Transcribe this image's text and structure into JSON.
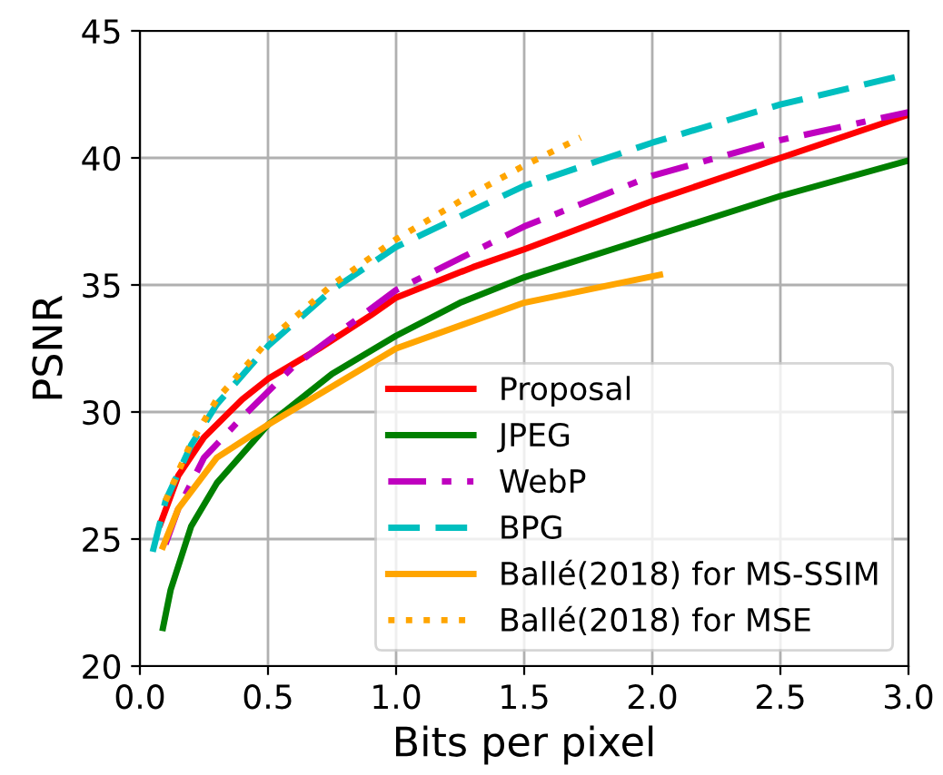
{
  "chart_data": {
    "type": "line",
    "xlabel": "Bits per pixel",
    "ylabel": "PSNR",
    "xlim": [
      0,
      3
    ],
    "ylim": [
      20,
      45
    ],
    "xticks": [
      {
        "value": 0,
        "label": "0.0"
      },
      0.5,
      {
        "value": 1,
        "label": "1.0"
      },
      1.5,
      {
        "value": 2,
        "label": "2.0"
      },
      2.5,
      {
        "value": 3,
        "label": "3.0"
      }
    ],
    "yticks": [
      20,
      25,
      30,
      35,
      40,
      45
    ],
    "grid": true,
    "legend": "bottom right",
    "series": [
      {
        "name": "Proposal",
        "color": "#ff0000",
        "line_style": "solid",
        "x": [
          0.08,
          0.15,
          0.25,
          0.4,
          0.5,
          0.7,
          0.9,
          1.0,
          1.3,
          1.5,
          2.0,
          2.5,
          3.0
        ],
        "values": [
          25.6,
          27.5,
          29,
          30.5,
          31.3,
          32.5,
          33.8,
          34.5,
          35.7,
          36.4,
          38.3,
          40.0,
          41.7
        ]
      },
      {
        "name": "JPEG",
        "color": "#008000",
        "line_style": "solid",
        "x": [
          0.09,
          0.12,
          0.2,
          0.3,
          0.5,
          0.75,
          1.0,
          1.25,
          1.5,
          2.0,
          2.5,
          3.0
        ],
        "values": [
          21.5,
          23,
          25.5,
          27.2,
          29.5,
          31.5,
          33,
          34.3,
          35.3,
          36.9,
          38.5,
          39.9
        ]
      },
      {
        "name": "WebP",
        "color": "#bf00bf",
        "line_style": "dashdot",
        "x": [
          0.1,
          0.15,
          0.25,
          0.4,
          0.6,
          0.8,
          1.0,
          1.5,
          2.0,
          2.5,
          3.0
        ],
        "values": [
          24.8,
          26.2,
          28.2,
          29.8,
          31.8,
          33.3,
          34.8,
          37.3,
          39.3,
          40.7,
          41.8
        ]
      },
      {
        "name": "BPG",
        "color": "#00bfbf",
        "line_style": "dashed",
        "x": [
          0.05,
          0.1,
          0.2,
          0.3,
          0.5,
          0.75,
          1.0,
          1.5,
          2.0,
          2.5,
          3.0
        ],
        "values": [
          24.5,
          26.5,
          28.7,
          30.3,
          32.6,
          34.8,
          36.5,
          38.9,
          40.6,
          42.1,
          43.3
        ]
      },
      {
        "name": "Ballé(2018) for MS-SSIM",
        "color": "#ffa500",
        "line_style": "solid",
        "x": [
          0.09,
          0.15,
          0.3,
          0.5,
          0.75,
          1.0,
          1.5,
          2.03
        ],
        "values": [
          24.7,
          26.2,
          28.2,
          29.5,
          31,
          32.5,
          34.3,
          35.4
        ]
      },
      {
        "name": "Ballé(2018) for MSE",
        "color": "#ffa500",
        "line_style": "dotted",
        "x": [
          0.1,
          0.2,
          0.3,
          0.5,
          0.75,
          1.0,
          1.3,
          1.5,
          1.72
        ],
        "values": [
          26.5,
          28.8,
          30.5,
          32.8,
          35,
          36.8,
          38.6,
          39.7,
          40.8
        ]
      }
    ]
  }
}
